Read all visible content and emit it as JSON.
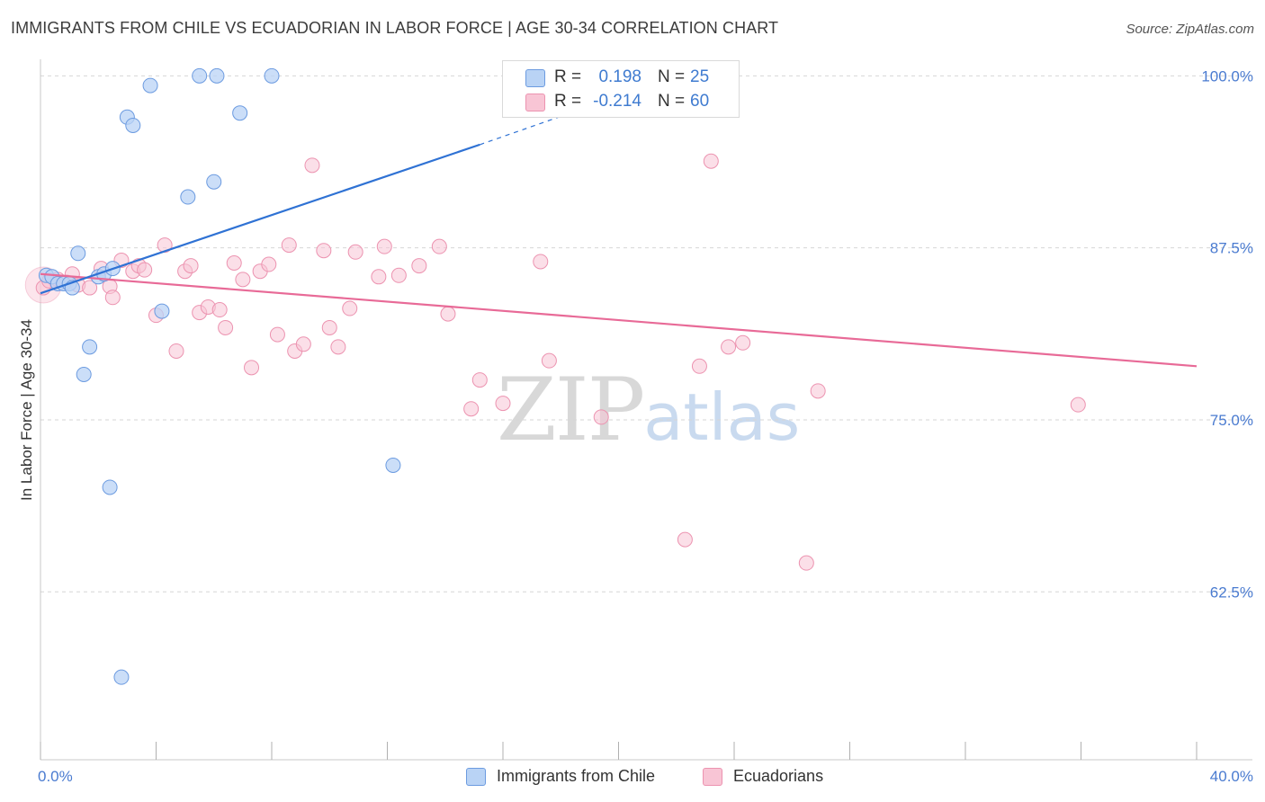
{
  "title": "IMMIGRANTS FROM CHILE VS ECUADORIAN IN LABOR FORCE | AGE 30-34 CORRELATION CHART",
  "source": "Source: ZipAtlas.com",
  "watermark": {
    "zip": "ZIP",
    "atlas": "atlas"
  },
  "legend": {
    "rows": [
      {
        "r_label": "R =",
        "r_value": "0.198",
        "n_label": "N =",
        "n_value": "25"
      },
      {
        "r_label": "R =",
        "r_value": "-0.214",
        "n_label": "N =",
        "n_value": "60"
      }
    ]
  },
  "bottom_legend": {
    "series1": "Immigrants from Chile",
    "series2": "Ecuadorians"
  },
  "colors": {
    "chile_fill": "#b9d3f5",
    "chile_stroke": "#6c9be0",
    "chile_line": "#2f72d4",
    "ecu_fill": "#f8c5d5",
    "ecu_stroke": "#ec93b0",
    "ecu_line": "#e86a97",
    "tick_text": "#4a7bd0",
    "grid": "#d6d6d6"
  },
  "chart_data": {
    "type": "scatter",
    "title": "IMMIGRANTS FROM CHILE VS ECUADORIAN IN LABOR FORCE | AGE 30-34 CORRELATION CHART",
    "xlabel": "",
    "ylabel": "In Labor Force | Age 30-34",
    "xlim": [
      0,
      40
    ],
    "ylim": [
      50.3,
      101.2
    ],
    "x_tick_labels": [
      "0.0%",
      "40.0%"
    ],
    "y_ticks": [
      100,
      87.5,
      75,
      62.5
    ],
    "y_tick_labels": [
      "100.0%",
      "87.5%",
      "75.0%",
      "62.5%"
    ],
    "grid": true,
    "series": [
      {
        "name": "Immigrants from Chile",
        "points": [
          [
            0.2,
            85.5
          ],
          [
            0.4,
            85.4
          ],
          [
            0.6,
            84.9
          ],
          [
            0.8,
            84.9
          ],
          [
            1.0,
            84.9
          ],
          [
            1.1,
            84.6
          ],
          [
            1.3,
            87.1
          ],
          [
            1.5,
            78.3
          ],
          [
            1.7,
            80.3
          ],
          [
            2.0,
            85.4
          ],
          [
            2.2,
            85.6
          ],
          [
            2.4,
            70.1
          ],
          [
            2.5,
            86.0
          ],
          [
            2.8,
            56.3
          ],
          [
            3.0,
            97.0
          ],
          [
            3.2,
            96.4
          ],
          [
            3.8,
            99.3
          ],
          [
            4.2,
            82.9
          ],
          [
            5.1,
            91.2
          ],
          [
            5.5,
            100.0
          ],
          [
            6.0,
            92.3
          ],
          [
            6.1,
            100.0
          ],
          [
            6.9,
            97.3
          ],
          [
            8.0,
            100.0
          ],
          [
            12.2,
            71.7
          ]
        ],
        "trend": [
          [
            0.0,
            84.2
          ],
          [
            15.2,
            95.0
          ]
        ],
        "trend_dashed": [
          [
            15.2,
            95.0
          ],
          [
            18.2,
            97.2
          ]
        ]
      },
      {
        "name": "Ecuadorians",
        "points": [
          [
            0.1,
            84.6
          ],
          [
            0.3,
            85.1
          ],
          [
            0.6,
            85.2
          ],
          [
            0.9,
            85.0
          ],
          [
            1.1,
            85.6
          ],
          [
            1.3,
            84.8
          ],
          [
            1.7,
            84.6
          ],
          [
            2.1,
            86.0
          ],
          [
            2.4,
            84.7
          ],
          [
            2.5,
            83.9
          ],
          [
            2.8,
            86.6
          ],
          [
            3.2,
            85.8
          ],
          [
            3.4,
            86.2
          ],
          [
            3.6,
            85.9
          ],
          [
            4.0,
            82.6
          ],
          [
            4.3,
            87.7
          ],
          [
            4.7,
            80.0
          ],
          [
            5.0,
            85.8
          ],
          [
            5.2,
            86.2
          ],
          [
            5.5,
            82.8
          ],
          [
            5.8,
            83.2
          ],
          [
            6.2,
            83.0
          ],
          [
            6.4,
            81.7
          ],
          [
            6.7,
            86.4
          ],
          [
            7.0,
            85.2
          ],
          [
            7.3,
            78.8
          ],
          [
            7.6,
            85.8
          ],
          [
            7.9,
            86.3
          ],
          [
            8.2,
            81.2
          ],
          [
            8.6,
            87.7
          ],
          [
            8.8,
            80.0
          ],
          [
            9.1,
            80.5
          ],
          [
            9.4,
            93.5
          ],
          [
            9.8,
            87.3
          ],
          [
            10.0,
            81.7
          ],
          [
            10.3,
            80.3
          ],
          [
            10.7,
            83.1
          ],
          [
            10.9,
            87.2
          ],
          [
            11.7,
            85.4
          ],
          [
            11.9,
            87.6
          ],
          [
            12.4,
            85.5
          ],
          [
            13.1,
            86.2
          ],
          [
            13.8,
            87.6
          ],
          [
            14.1,
            82.7
          ],
          [
            14.9,
            75.8
          ],
          [
            15.2,
            77.9
          ],
          [
            16.0,
            76.2
          ],
          [
            17.3,
            86.5
          ],
          [
            17.6,
            79.3
          ],
          [
            18.6,
            100.0
          ],
          [
            19.4,
            75.2
          ],
          [
            22.3,
            66.3
          ],
          [
            22.4,
            100.0
          ],
          [
            22.8,
            78.9
          ],
          [
            23.2,
            93.8
          ],
          [
            23.8,
            80.3
          ],
          [
            24.3,
            80.6
          ],
          [
            26.5,
            64.6
          ],
          [
            26.9,
            77.1
          ],
          [
            35.9,
            76.1
          ]
        ],
        "trend": [
          [
            0.0,
            85.6
          ],
          [
            40.0,
            78.9
          ]
        ]
      }
    ]
  }
}
